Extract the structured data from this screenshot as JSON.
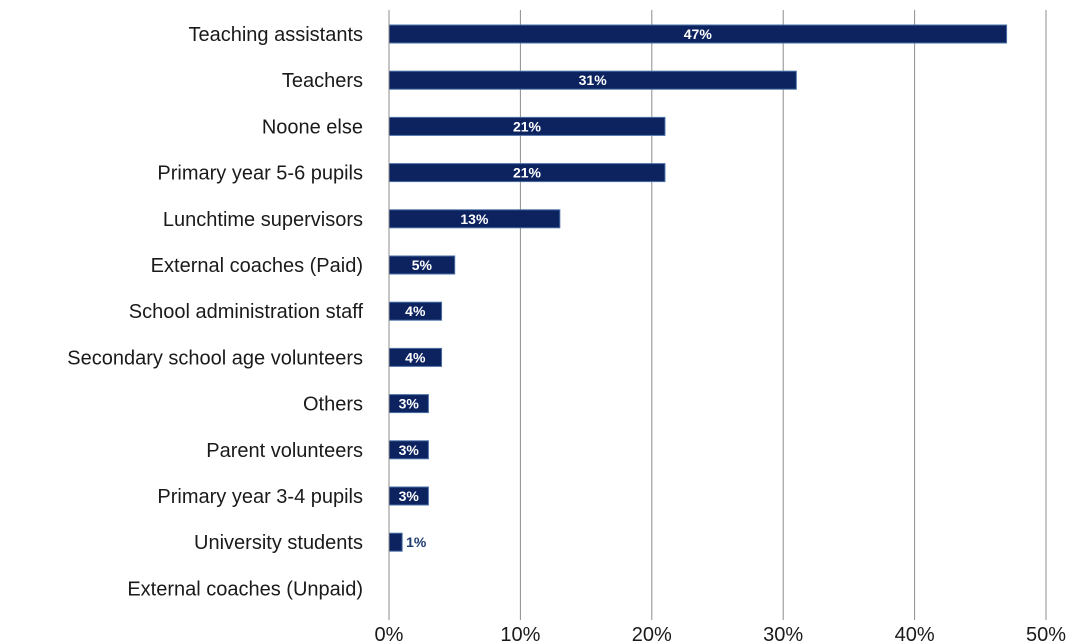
{
  "chart_data": {
    "type": "bar",
    "orientation": "horizontal",
    "categories": [
      "Teaching assistants",
      "Teachers",
      "Noone else",
      "Primary year 5-6 pupils",
      "Lunchtime supervisors",
      "External coaches (Paid)",
      "School administration staff",
      "Secondary school age volunteers",
      "Others",
      "Parent volunteers",
      "Primary year 3-4 pupils",
      "University students",
      "External coaches (Unpaid)"
    ],
    "values": [
      47,
      31,
      21,
      21,
      13,
      5,
      4,
      4,
      3,
      3,
      3,
      1,
      0
    ],
    "value_labels": [
      "47%",
      "31%",
      "21%",
      "21%",
      "13%",
      "5%",
      "4%",
      "4%",
      "3%",
      "3%",
      "3%",
      "1%",
      ""
    ],
    "xlim": [
      0,
      50
    ],
    "x_ticks": [
      0,
      10,
      20,
      30,
      40,
      50
    ],
    "x_tick_labels": [
      "0%",
      "10%",
      "20%",
      "30%",
      "40%",
      "50%"
    ],
    "grid": "vertical",
    "legend": "none",
    "title": "",
    "xlabel": "",
    "ylabel": "",
    "colors": {
      "bar_fill": "#0c2360",
      "bar_edge": "#4a6fa5",
      "grid": "#8c8c8c",
      "label_outside": "#1f3b6e"
    }
  }
}
